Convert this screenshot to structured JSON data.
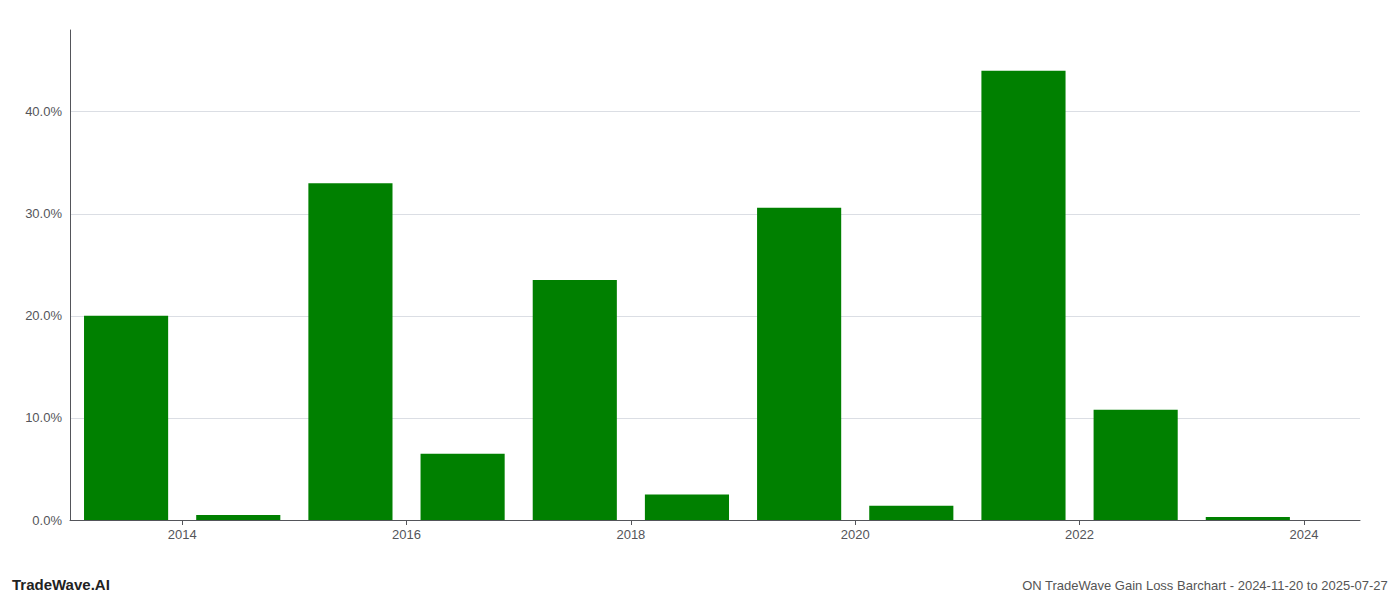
{
  "chart_data": {
    "type": "bar",
    "x": [
      2013.5,
      2014.5,
      2015.5,
      2016.5,
      2017.5,
      2018.5,
      2019.5,
      2020.5,
      2021.5,
      2022.5,
      2023.5
    ],
    "values": [
      0.2,
      0.005,
      0.33,
      0.065,
      0.235,
      0.025,
      0.306,
      0.014,
      0.44,
      0.108,
      0.003
    ],
    "color": "#008000",
    "xlim": [
      2013.0,
      2024.5
    ],
    "xticks": [
      2014,
      2016,
      2018,
      2020,
      2022,
      2024
    ],
    "ylim": [
      0.0,
      0.48
    ],
    "yticks": [
      {
        "value": 0.0,
        "label": "0.0%"
      },
      {
        "value": 0.1,
        "label": "10.0%"
      },
      {
        "value": 0.2,
        "label": "20.0%"
      },
      {
        "value": 0.3,
        "label": "30.0%"
      },
      {
        "value": 0.4,
        "label": "40.0%"
      }
    ],
    "grid": true,
    "annotations": [
      "TradeWave.AI",
      "ON TradeWave Gain Loss Barchart - 2024-11-20 to 2025-07-27"
    ]
  }
}
